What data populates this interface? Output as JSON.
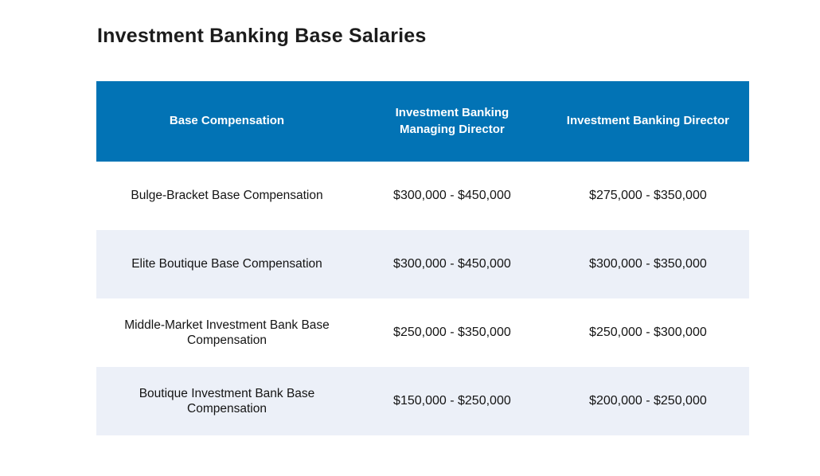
{
  "page": {
    "title": "Investment Banking Base Salaries"
  },
  "table": {
    "columns": [
      "Base Compensation",
      "Investment Banking Managing Director",
      "Investment Banking Director"
    ],
    "rows": [
      {
        "label": "Bulge-Bracket Base Compensation",
        "managing_director": "$300,000 - $450,000",
        "director": "$275,000 - $350,000"
      },
      {
        "label": "Elite Boutique Base Compensation",
        "managing_director": "$300,000 - $450,000",
        "director": "$300,000 - $350,000"
      },
      {
        "label": "Middle-Market Investment Bank Base Compensation",
        "managing_director": "$250,000 - $350,000",
        "director": "$250,000 - $300,000"
      },
      {
        "label": "Boutique Investment Bank Base Compensation",
        "managing_director": "$150,000 - $250,000",
        "director": "$200,000 - $250,000"
      }
    ]
  },
  "colors": {
    "header_bg": "#0273B5",
    "alt_row_bg": "#ECF0F8",
    "header_text": "#FFFFFF",
    "body_text": "#141414",
    "title_text": "#1C1C1C"
  }
}
